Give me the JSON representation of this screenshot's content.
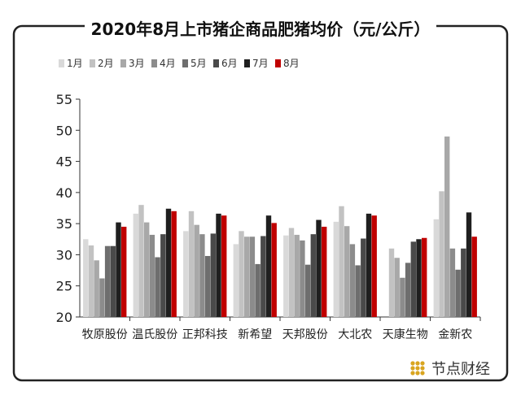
{
  "chart_data": {
    "type": "bar",
    "title": "2020年8月上市猪企商品肥猪均价（元/公斤）",
    "categories": [
      "牧原股份",
      "温氏股份",
      "正邦科技",
      "新希望",
      "天邦股份",
      "大北农",
      "天康生物",
      "金新农"
    ],
    "series": [
      {
        "name": "1月",
        "color": "#d9d9d9",
        "values": [
          32.5,
          36.6,
          33.8,
          31.7,
          33.1,
          35.3,
          null,
          35.7
        ]
      },
      {
        "name": "2月",
        "color": "#c2c2c2",
        "values": [
          31.5,
          38.0,
          37.0,
          33.8,
          34.3,
          37.8,
          31.0,
          40.2
        ]
      },
      {
        "name": "3月",
        "color": "#a8a8a8",
        "values": [
          29.1,
          35.2,
          34.8,
          32.9,
          33.2,
          34.6,
          29.5,
          49.0
        ]
      },
      {
        "name": "4月",
        "color": "#8c8c8c",
        "values": [
          26.2,
          33.2,
          33.3,
          32.9,
          32.3,
          31.7,
          26.3,
          31.0
        ]
      },
      {
        "name": "5月",
        "color": "#6e6e6e",
        "values": [
          31.4,
          29.6,
          29.8,
          28.5,
          28.4,
          28.3,
          28.7,
          27.6
        ]
      },
      {
        "name": "6月",
        "color": "#4a4a4a",
        "values": [
          31.4,
          33.3,
          33.4,
          33.0,
          33.3,
          32.6,
          32.1,
          31.0
        ]
      },
      {
        "name": "7月",
        "color": "#1f1f1f",
        "values": [
          35.2,
          37.4,
          36.6,
          36.3,
          35.6,
          36.6,
          32.5,
          36.8
        ]
      },
      {
        "name": "8月",
        "color": "#c00000",
        "values": [
          34.5,
          37.0,
          36.3,
          35.1,
          34.5,
          36.3,
          32.7,
          32.9
        ]
      }
    ],
    "ylim": [
      20,
      55
    ],
    "yticks": [
      20,
      25,
      30,
      35,
      40,
      45,
      50,
      55
    ],
    "grid": false,
    "legend_position": "top-left",
    "brand": "节点财经"
  }
}
